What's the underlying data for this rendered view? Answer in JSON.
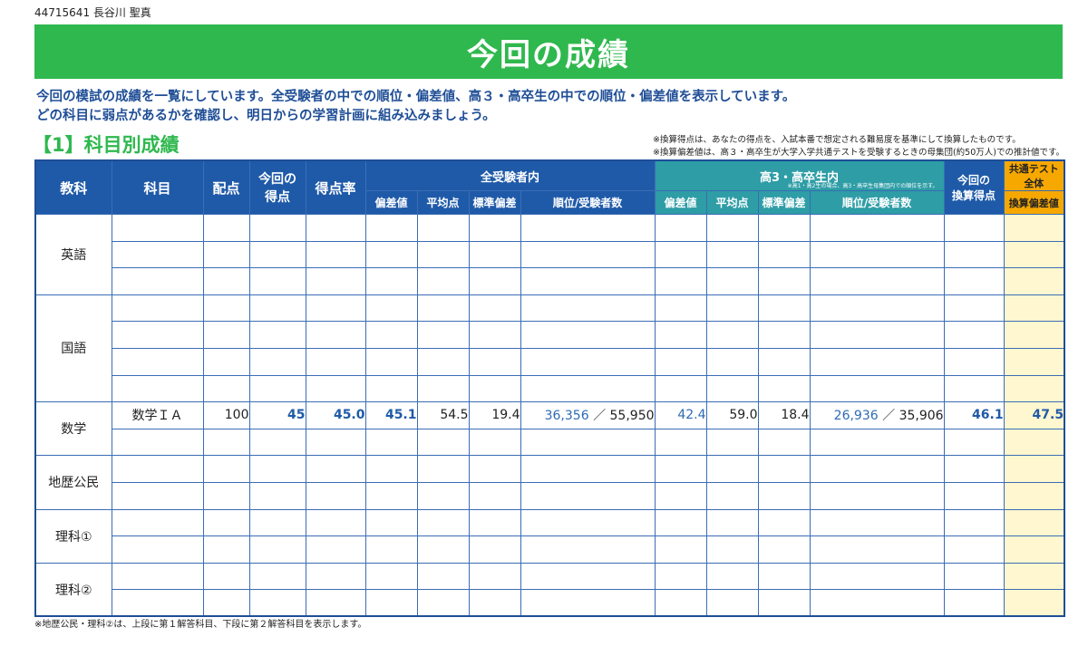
{
  "student": "44715641 長谷川 聖真",
  "title": "今回の成績",
  "intro": [
    "今回の模試の成績を一覧にしています。全受験者の中での順位・偏差値、高３・高卒生の中での順位・偏差値を表示しています。",
    "どの科目に弱点があるかを確認し、明日からの学習計画に組み込みましょう。"
  ],
  "section_title": "【1】科目別成績",
  "notes": [
    "※換算得点は、あなたの得点を、入試本番で想定される難易度を基準にして換算したものです。",
    "※換算偏差値は、高３・高卒生が大学入学共通テストを受験するときの母集団(約50万人)での推計値です。"
  ],
  "headers": {
    "kyoka": "教科",
    "kamoku": "科目",
    "haiten": "配点",
    "tokuten_l1": "今回の",
    "tokuten_l2": "得点",
    "ritsu": "得点率",
    "all_group": "全受験者内",
    "koko_group": "高3・高卒生内",
    "koko_note": "※高1・高2生の場合、高3・高卒生母集団内での順位を示す。",
    "hensachi": "偏差値",
    "heikin": "平均点",
    "hyojun": "標準偏差",
    "juni": "順位/受験者数",
    "kansan_l1": "今回の",
    "kansan_l2": "換算得点",
    "kyotsu": "共通テスト全体",
    "kansan_hensa": "換算偏差値"
  },
  "subjects": [
    "英語",
    "国語",
    "数学",
    "地歴公民",
    "理科①",
    "理科②"
  ],
  "math_row": {
    "kamoku": "数学ＩＡ",
    "haiten": "100",
    "tokuten": "45",
    "ritsu": "45.0",
    "all_hensachi": "45.1",
    "all_heikin": "54.5",
    "all_hyojun": "19.4",
    "all_rank": "36,356",
    "all_sep": "／",
    "all_total": "55,950",
    "koko_hensachi": "42.4",
    "koko_heikin": "59.0",
    "koko_hyojun": "18.4",
    "koko_rank": "26,936",
    "koko_sep": "／",
    "koko_total": "35,906",
    "kansan_tokuten": "46.1",
    "kansan_hensachi": "47.5"
  },
  "footnote": "※地歴公民・理科②は、上段に第１解答科目、下段に第２解答科目を表示します。",
  "colors": {
    "banner_green": "#2fb84e",
    "header_blue": "#1f5aa8",
    "header_teal": "#2e9da6",
    "header_orange": "#f6a800",
    "highlight_yellow": "#fff7cf",
    "value_blue": "#1f5aa8"
  }
}
